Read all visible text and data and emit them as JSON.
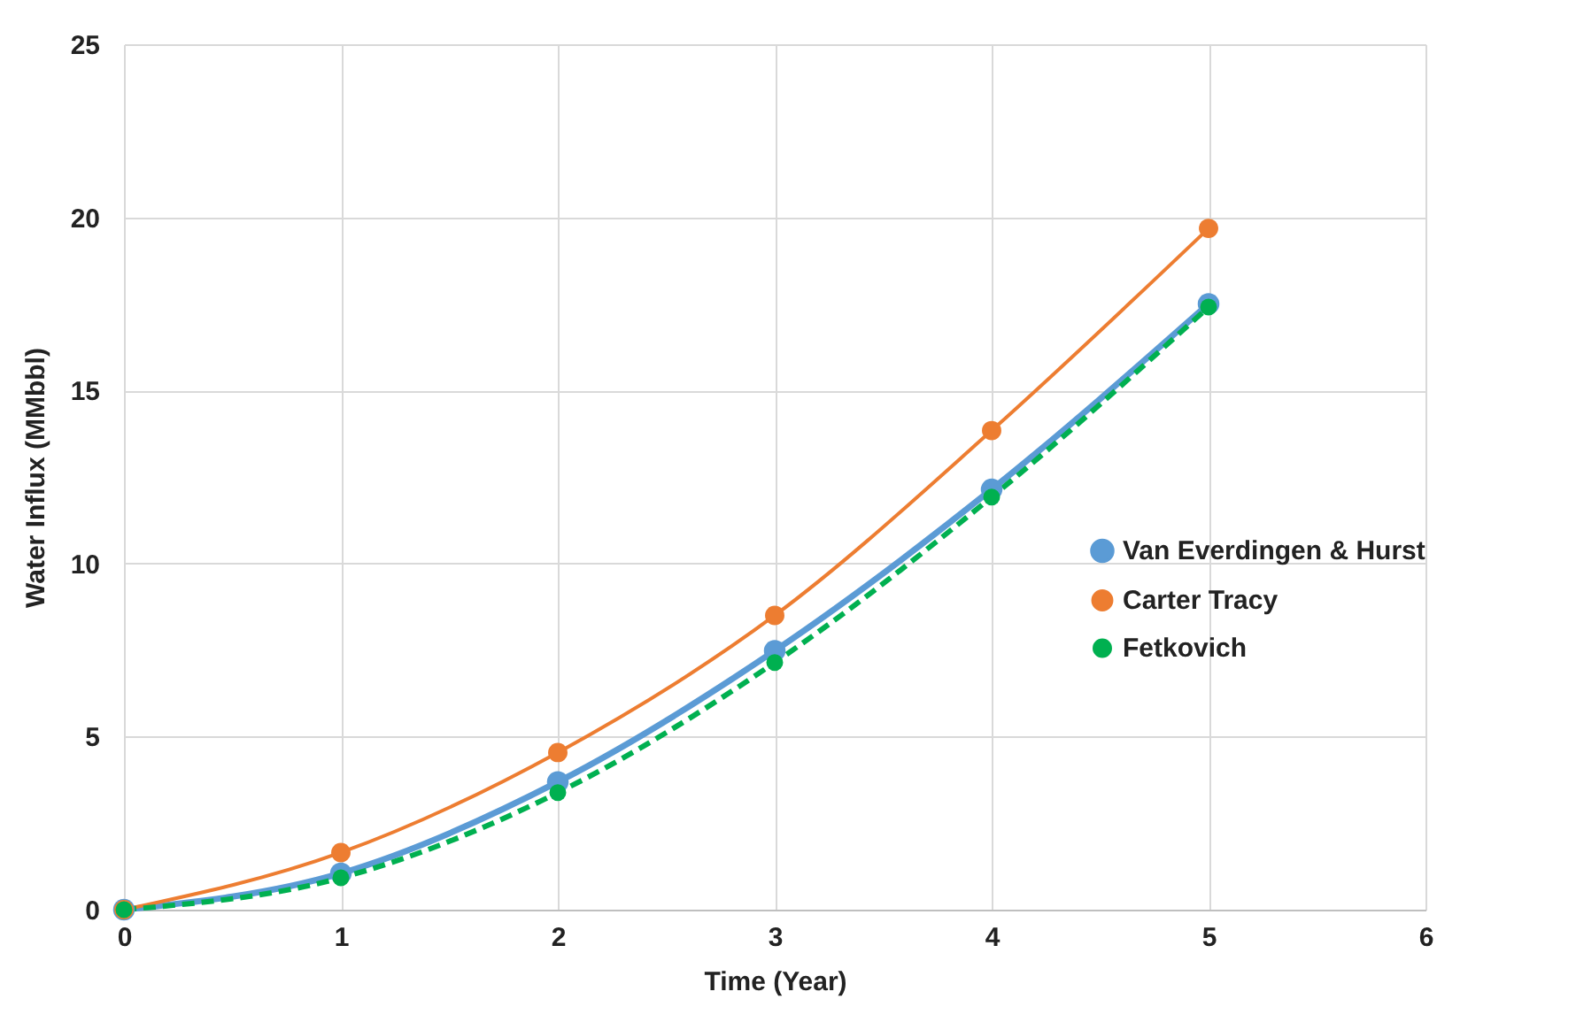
{
  "chart_data": {
    "type": "line",
    "xlabel": "Time (Year)",
    "ylabel": "Water Influx (MMbbl)",
    "x": [
      0,
      1,
      2,
      3,
      4,
      5
    ],
    "series": [
      {
        "name": "Van Everdingen & Hurst",
        "color": "#5b9bd5",
        "line_style": "solid",
        "values": [
          0,
          1.05,
          3.69,
          7.48,
          12.14,
          17.5
        ]
      },
      {
        "name": "Carter Tracy",
        "color": "#ed7d31",
        "line_style": "solid",
        "values": [
          0,
          1.65,
          4.54,
          8.5,
          13.84,
          19.68
        ]
      },
      {
        "name": "Fetkovich",
        "color": "#00b050",
        "line_style": "dashed",
        "values": [
          0,
          0.92,
          3.38,
          7.14,
          11.92,
          17.41
        ]
      }
    ],
    "xlim": [
      0,
      6
    ],
    "xticks": [
      0,
      1,
      2,
      3,
      4,
      5,
      6
    ],
    "ylim": [
      0,
      25
    ],
    "yticks": [
      0,
      5,
      10,
      15,
      20,
      25
    ],
    "grid": true,
    "legend": "right",
    "marker": "circle"
  }
}
